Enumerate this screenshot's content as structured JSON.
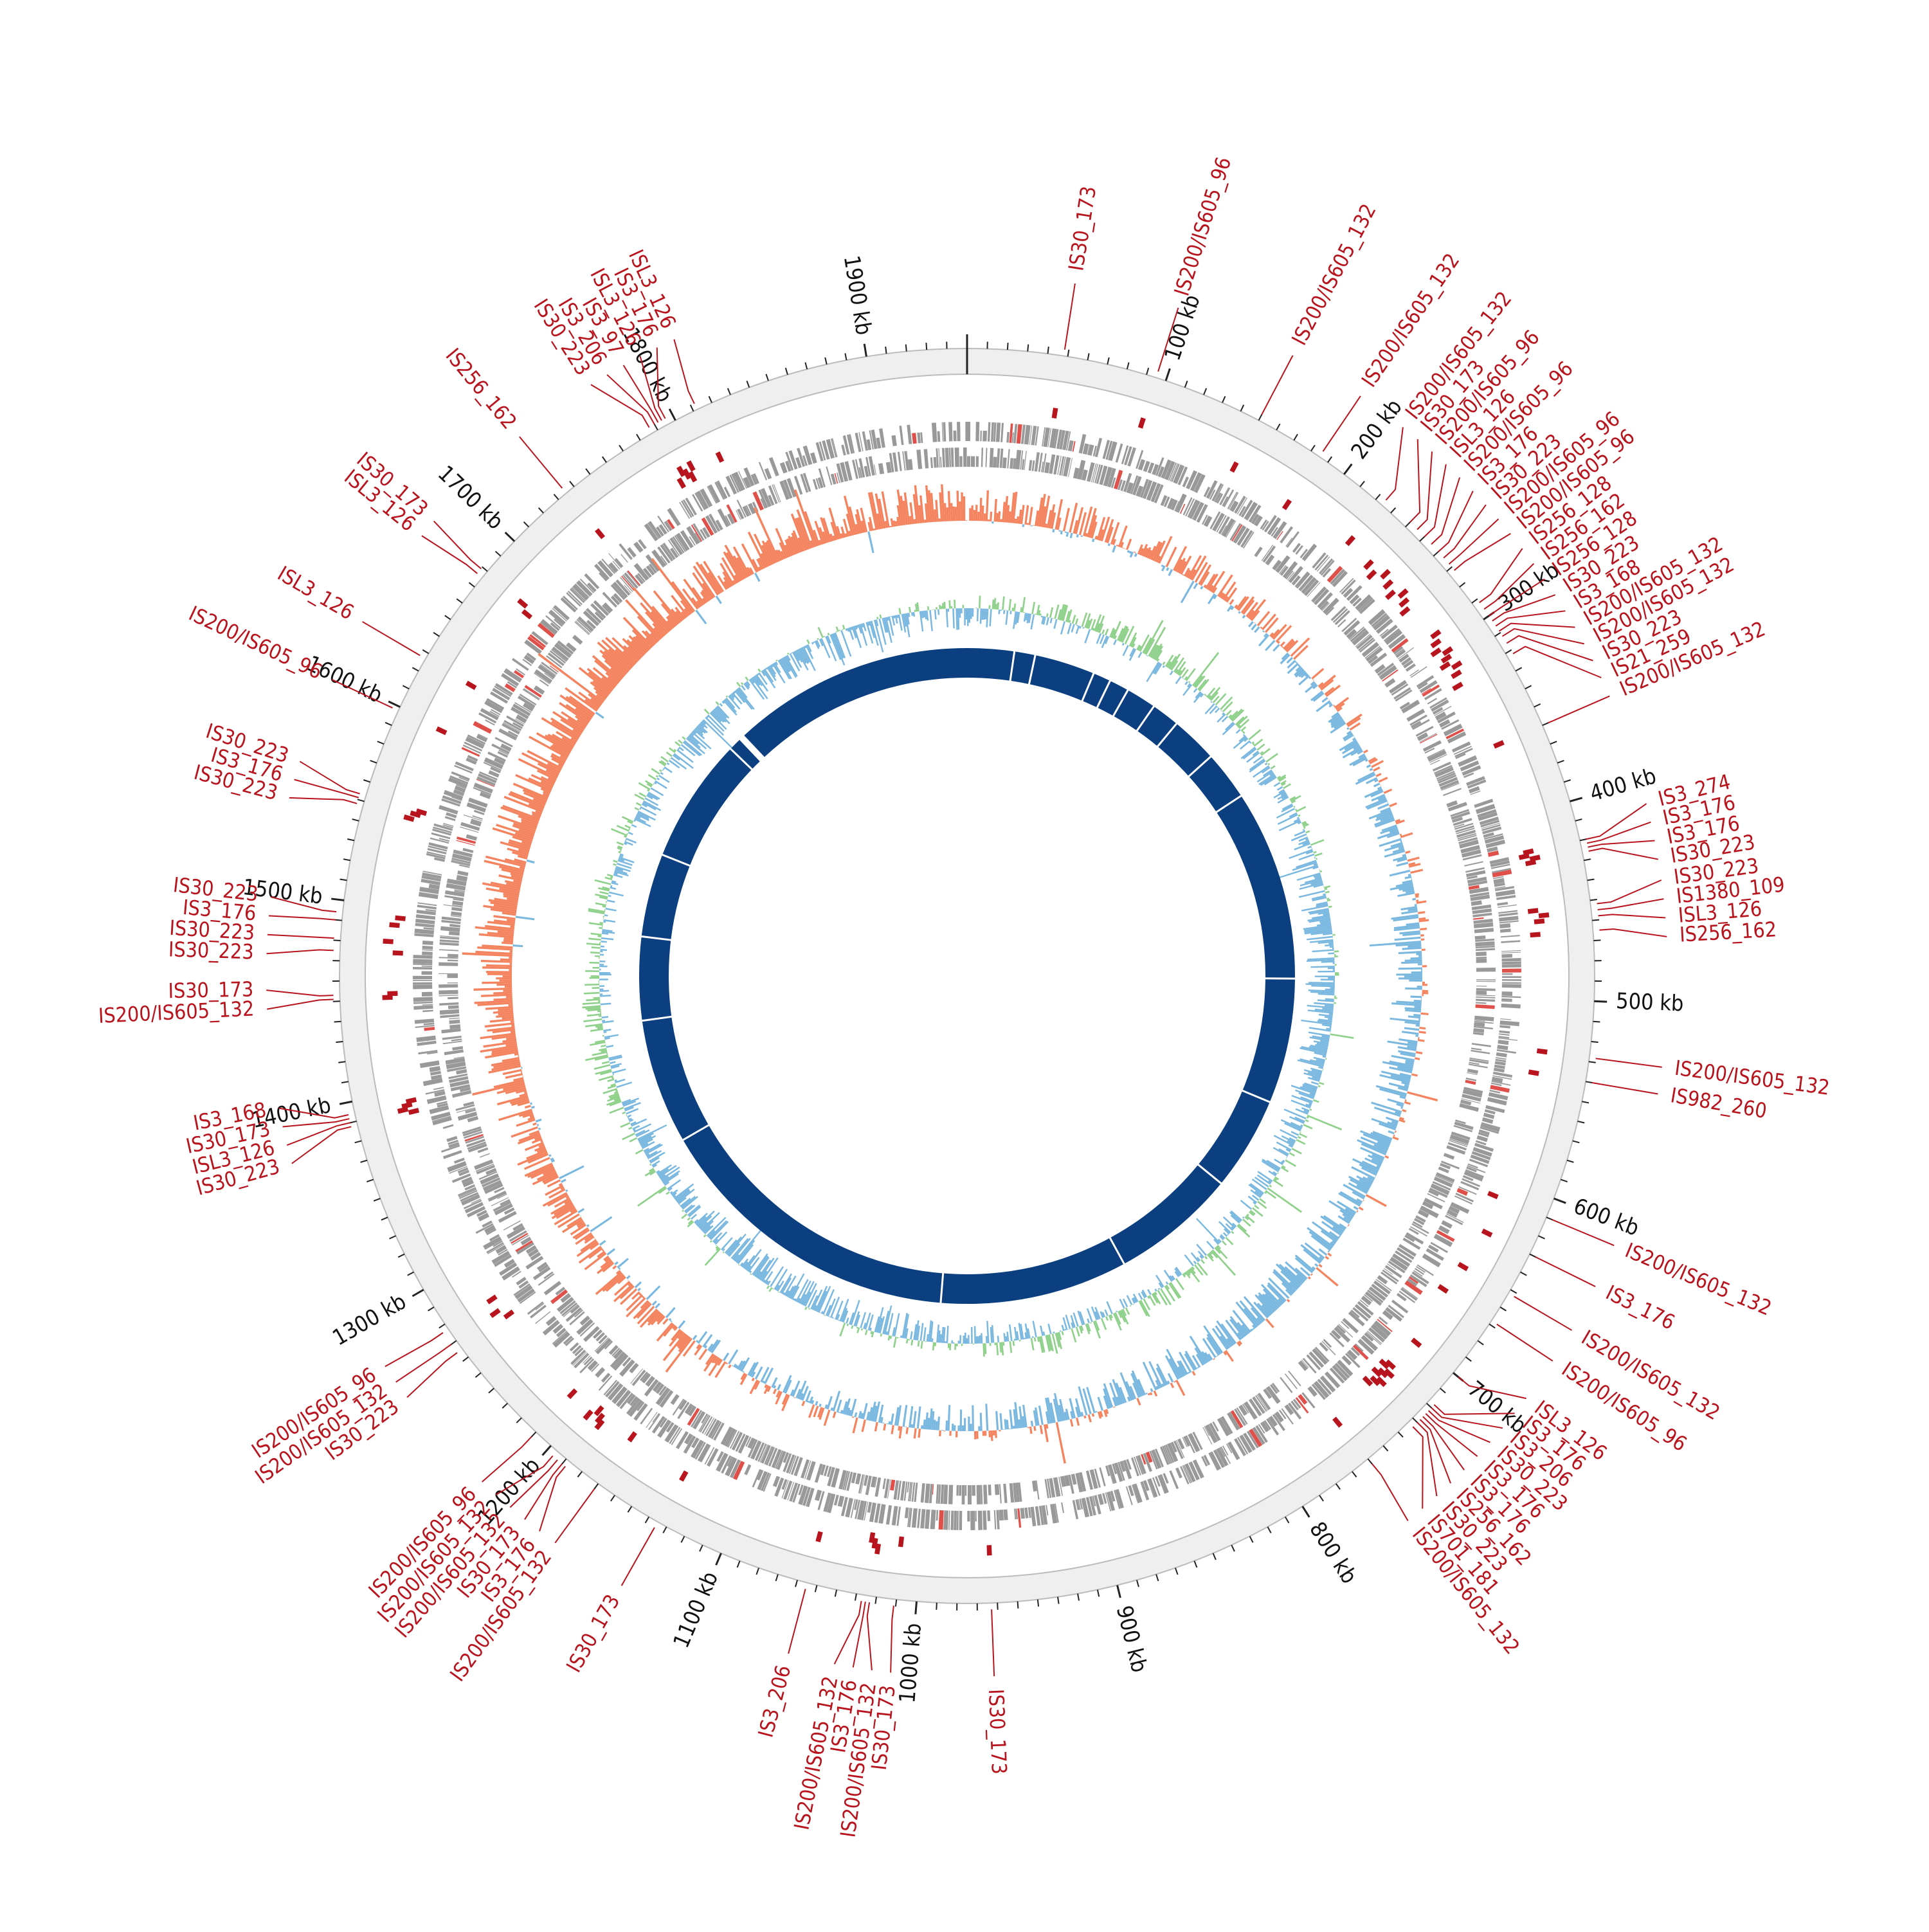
{
  "genome": {
    "total_kb": 1950,
    "tick_labels": [
      "100 kb",
      "200 kb",
      "300 kb",
      "400 kb",
      "500 kb",
      "600 kb",
      "700 kb",
      "800 kb",
      "900 kb",
      "1000 kb",
      "1100 kb",
      "1200 kb",
      "1300 kb",
      "1400 kb",
      "1500 kb",
      "1600 kb",
      "1700 kb",
      "1800 kb",
      "1900 kb"
    ]
  },
  "colors": {
    "ruler_ring": "#efefef",
    "ruler_tick": "#222222",
    "is_red": "#b8141d",
    "gene_gray": "#999999",
    "gene_red": "#e0504a",
    "gc_skew_orange": "#f4845f",
    "gc_skew_blue": "#7ab8e0",
    "gc_content_green": "#8fd18b",
    "gc_content_blue": "#7ab8e0",
    "inner_blue": "#0b3f7f"
  },
  "insertion_sequences": [
    {
      "kb": 48,
      "label": "IS30_173"
    },
    {
      "kb": 95,
      "label": "IS200/IS605_96"
    },
    {
      "kb": 150,
      "label": "IS200/IS605_132"
    },
    {
      "kb": 185,
      "label": "IS200/IS605_132"
    },
    {
      "kb": 224,
      "label": "IS200/IS605_132"
    },
    {
      "kb": 240,
      "label": "IS30_173"
    },
    {
      "kb": 245,
      "label": "IS200/IS605_96"
    },
    {
      "kb": 250,
      "label": "ISL3_126"
    },
    {
      "kb": 255,
      "label": "IS200/IS605_96"
    },
    {
      "kb": 260,
      "label": "IS3_176"
    },
    {
      "kb": 264,
      "label": "IS30_223"
    },
    {
      "kb": 268,
      "label": "IS200/IS605_96"
    },
    {
      "kb": 272,
      "label": "IS200/IS605_96"
    },
    {
      "kb": 292,
      "label": "IS256_128"
    },
    {
      "kb": 296,
      "label": "IS256_162"
    },
    {
      "kb": 300,
      "label": "IS256_128"
    },
    {
      "kb": 303,
      "label": "IS30_223"
    },
    {
      "kb": 306,
      "label": "IS3_168"
    },
    {
      "kb": 309,
      "label": "IS200/IS605_132"
    },
    {
      "kb": 312,
      "label": "IS200/IS605_132"
    },
    {
      "kb": 316,
      "label": "IS30_223"
    },
    {
      "kb": 322,
      "label": "IS21_259"
    },
    {
      "kb": 360,
      "label": "IS200/IS605_132"
    },
    {
      "kb": 420,
      "label": "IS3_274"
    },
    {
      "kb": 422,
      "label": "IS3_176"
    },
    {
      "kb": 424,
      "label": "IS3_176"
    },
    {
      "kb": 426,
      "label": "IS30_223"
    },
    {
      "kb": 452,
      "label": "IS30_223"
    },
    {
      "kb": 455,
      "label": "IS1380_109"
    },
    {
      "kb": 458,
      "label": "ISL3_126"
    },
    {
      "kb": 465,
      "label": "IS256_162"
    },
    {
      "kb": 528,
      "label": "IS200/IS605_132"
    },
    {
      "kb": 540,
      "label": "IS982_260"
    },
    {
      "kb": 610,
      "label": "IS200/IS605_132"
    },
    {
      "kb": 630,
      "label": "IS3_176"
    },
    {
      "kb": 652,
      "label": "IS200/IS605_132"
    },
    {
      "kb": 668,
      "label": "IS200/IS605_96"
    },
    {
      "kb": 700,
      "label": "ISL3_126"
    },
    {
      "kb": 718,
      "label": "IS3_176"
    },
    {
      "kb": 720,
      "label": "IS3_206"
    },
    {
      "kb": 722,
      "label": "IS30_223"
    },
    {
      "kb": 724,
      "label": "IS3_176"
    },
    {
      "kb": 726,
      "label": "IS3_176"
    },
    {
      "kb": 728,
      "label": "IS256_162"
    },
    {
      "kb": 730,
      "label": "IS30_223"
    },
    {
      "kb": 733,
      "label": "IS701_181"
    },
    {
      "kb": 760,
      "label": "IS200/IS605_132"
    },
    {
      "kb": 963,
      "label": "IS30_173"
    },
    {
      "kb": 1011,
      "label": "IS30_173"
    },
    {
      "kb": 1023,
      "label": "IS200/IS605_132"
    },
    {
      "kb": 1025,
      "label": "IS3_176"
    },
    {
      "kb": 1027,
      "label": "IS200/IS605_132"
    },
    {
      "kb": 1055,
      "label": "IS3_206"
    },
    {
      "kb": 1135,
      "label": "IS30_173"
    },
    {
      "kb": 1170,
      "label": "IS200/IS605_132"
    },
    {
      "kb": 1188,
      "label": "IS3_176"
    },
    {
      "kb": 1190,
      "label": "IS30_173"
    },
    {
      "kb": 1193,
      "label": "IS200/IS605_132"
    },
    {
      "kb": 1196,
      "label": "IS200/IS605_132"
    },
    {
      "kb": 1210,
      "label": "IS200/IS605_96"
    },
    {
      "kb": 1265,
      "label": "IS30_223"
    },
    {
      "kb": 1270,
      "label": "IS200/IS605_132"
    },
    {
      "kb": 1277,
      "label": "IS200/IS605_96"
    },
    {
      "kb": 1388,
      "label": "IS30_223"
    },
    {
      "kb": 1390,
      "label": "ISL3_126"
    },
    {
      "kb": 1392,
      "label": "IS30_173"
    },
    {
      "kb": 1394,
      "label": "IS3_168"
    },
    {
      "kb": 1451,
      "label": "IS200/IS605_132"
    },
    {
      "kb": 1453,
      "label": "IS30_173"
    },
    {
      "kb": 1475,
      "label": "IS30_223"
    },
    {
      "kb": 1481,
      "label": "IS30_223"
    },
    {
      "kb": 1490,
      "label": "IS3_176"
    },
    {
      "kb": 1494,
      "label": "IS30_223"
    },
    {
      "kb": 1548,
      "label": "IS30_223"
    },
    {
      "kb": 1551,
      "label": "IS3_176"
    },
    {
      "kb": 1553,
      "label": "IS30_223"
    },
    {
      "kb": 1598,
      "label": "IS200/IS605_96"
    },
    {
      "kb": 1627,
      "label": "ISL3_126"
    },
    {
      "kb": 1676,
      "label": "ISL3_126"
    },
    {
      "kb": 1679,
      "label": "IS30_173"
    },
    {
      "kb": 1735,
      "label": "IS256_162"
    },
    {
      "kb": 1787,
      "label": "IS30_223"
    },
    {
      "kb": 1790,
      "label": "IS3_206"
    },
    {
      "kb": 1792,
      "label": "IS3_97"
    },
    {
      "kb": 1794,
      "label": "ISL3_126"
    },
    {
      "kb": 1796,
      "label": "IS3_176"
    },
    {
      "kb": 1812,
      "label": "ISL3_126"
    }
  ]
}
